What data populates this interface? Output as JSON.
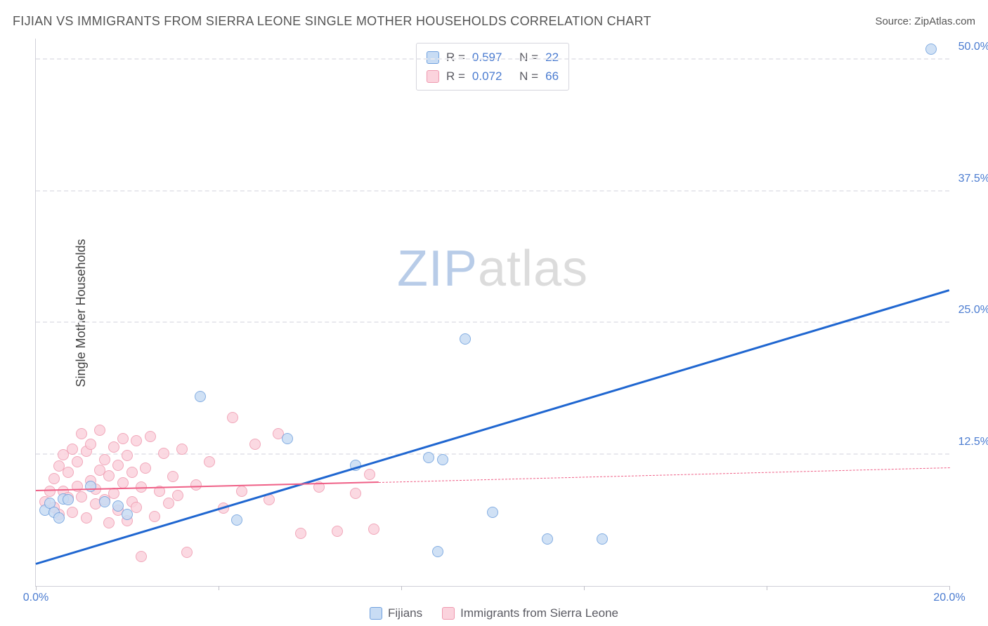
{
  "title": "FIJIAN VS IMMIGRANTS FROM SIERRA LEONE SINGLE MOTHER HOUSEHOLDS CORRELATION CHART",
  "source_label": "Source: ZipAtlas.com",
  "ylabel": "Single Mother Households",
  "watermark": {
    "prefix": "ZIP",
    "suffix": "atlas"
  },
  "chart": {
    "type": "scatter",
    "background_color": "#ffffff",
    "grid_color": "#e8e8ed",
    "axis_color": "#d0d0d8",
    "tick_label_color": "#4a7bd0",
    "tick_fontsize": 16,
    "title_fontsize": 18,
    "title_color": "#555555",
    "ylabel_fontsize": 18,
    "xlim": [
      0,
      20
    ],
    "ylim": [
      0,
      52
    ],
    "yticks": [
      12.5,
      25.0,
      37.5,
      50.0
    ],
    "ytick_labels": [
      "12.5%",
      "25.0%",
      "37.5%",
      "50.0%"
    ],
    "xticks": [
      0,
      4,
      8,
      12,
      16,
      20
    ],
    "xtick_labels_shown": {
      "0": "0.0%",
      "20": "20.0%"
    },
    "marker_radius": 8,
    "marker_border_width": 1.5,
    "series": [
      {
        "name": "Fijians",
        "fill": "#c8dcf4",
        "stroke": "#6fa0de",
        "trend_color": "#1f66d0",
        "trend_width": 3,
        "trend": {
          "x1": 0,
          "y1": 2.0,
          "x2": 20,
          "y2": 28.0
        },
        "stats": {
          "R": "0.597",
          "N": "22"
        },
        "points": [
          [
            0.2,
            7.2
          ],
          [
            0.3,
            7.9
          ],
          [
            0.4,
            7.0
          ],
          [
            0.5,
            6.5
          ],
          [
            0.6,
            8.3
          ],
          [
            0.7,
            8.2
          ],
          [
            1.2,
            9.5
          ],
          [
            1.5,
            8.0
          ],
          [
            1.8,
            7.6
          ],
          [
            2.0,
            6.8
          ],
          [
            3.6,
            18.0
          ],
          [
            4.4,
            6.3
          ],
          [
            5.5,
            14.0
          ],
          [
            7.0,
            11.5
          ],
          [
            8.6,
            12.2
          ],
          [
            8.9,
            12.0
          ],
          [
            9.4,
            23.5
          ],
          [
            8.8,
            3.3
          ],
          [
            10.0,
            7.0
          ],
          [
            11.2,
            4.5
          ],
          [
            12.4,
            4.5
          ],
          [
            19.6,
            51.0
          ]
        ]
      },
      {
        "name": "Immigrants from Sierra Leone",
        "fill": "#fbd3dd",
        "stroke": "#ef99af",
        "trend_color": "#ef5f86",
        "trend_width": 2.5,
        "trend_solid": {
          "x1": 0,
          "y1": 9.0,
          "x2": 7.5,
          "y2": 9.8
        },
        "trend_dashed": {
          "x1": 7.5,
          "y1": 9.8,
          "x2": 20,
          "y2": 11.2
        },
        "stats": {
          "R": "0.072",
          "N": "66"
        },
        "points": [
          [
            0.2,
            8.0
          ],
          [
            0.3,
            9.0
          ],
          [
            0.4,
            10.2
          ],
          [
            0.4,
            7.5
          ],
          [
            0.5,
            11.4
          ],
          [
            0.5,
            6.8
          ],
          [
            0.6,
            12.5
          ],
          [
            0.6,
            9.0
          ],
          [
            0.7,
            8.4
          ],
          [
            0.7,
            10.8
          ],
          [
            0.8,
            13.0
          ],
          [
            0.8,
            7.0
          ],
          [
            0.9,
            9.5
          ],
          [
            0.9,
            11.8
          ],
          [
            1.0,
            14.5
          ],
          [
            1.0,
            8.5
          ],
          [
            1.1,
            12.8
          ],
          [
            1.1,
            6.5
          ],
          [
            1.2,
            10.0
          ],
          [
            1.2,
            13.5
          ],
          [
            1.3,
            7.8
          ],
          [
            1.3,
            9.2
          ],
          [
            1.4,
            11.0
          ],
          [
            1.4,
            14.8
          ],
          [
            1.5,
            8.2
          ],
          [
            1.5,
            12.0
          ],
          [
            1.6,
            6.0
          ],
          [
            1.6,
            10.5
          ],
          [
            1.7,
            13.2
          ],
          [
            1.7,
            8.8
          ],
          [
            1.8,
            11.5
          ],
          [
            1.8,
            7.2
          ],
          [
            1.9,
            9.8
          ],
          [
            1.9,
            14.0
          ],
          [
            2.0,
            6.2
          ],
          [
            2.0,
            12.4
          ],
          [
            2.1,
            8.0
          ],
          [
            2.1,
            10.8
          ],
          [
            2.2,
            13.8
          ],
          [
            2.2,
            7.5
          ],
          [
            2.3,
            9.4
          ],
          [
            2.3,
            2.8
          ],
          [
            2.4,
            11.2
          ],
          [
            2.5,
            14.2
          ],
          [
            2.6,
            6.6
          ],
          [
            2.7,
            9.0
          ],
          [
            2.8,
            12.6
          ],
          [
            2.9,
            7.9
          ],
          [
            3.0,
            10.4
          ],
          [
            3.1,
            8.6
          ],
          [
            3.2,
            13.0
          ],
          [
            3.3,
            3.2
          ],
          [
            3.5,
            9.6
          ],
          [
            3.8,
            11.8
          ],
          [
            4.1,
            7.4
          ],
          [
            4.3,
            16.0
          ],
          [
            4.5,
            9.0
          ],
          [
            4.8,
            13.5
          ],
          [
            5.1,
            8.2
          ],
          [
            5.3,
            14.5
          ],
          [
            5.8,
            5.0
          ],
          [
            6.2,
            9.4
          ],
          [
            6.6,
            5.2
          ],
          [
            7.0,
            8.8
          ],
          [
            7.3,
            10.6
          ],
          [
            7.4,
            5.4
          ]
        ]
      }
    ]
  },
  "legend_stats": {
    "r_label": "R =",
    "n_label": "N ="
  },
  "bottom_legend": {
    "items": [
      "Fijians",
      "Immigrants from Sierra Leone"
    ]
  }
}
